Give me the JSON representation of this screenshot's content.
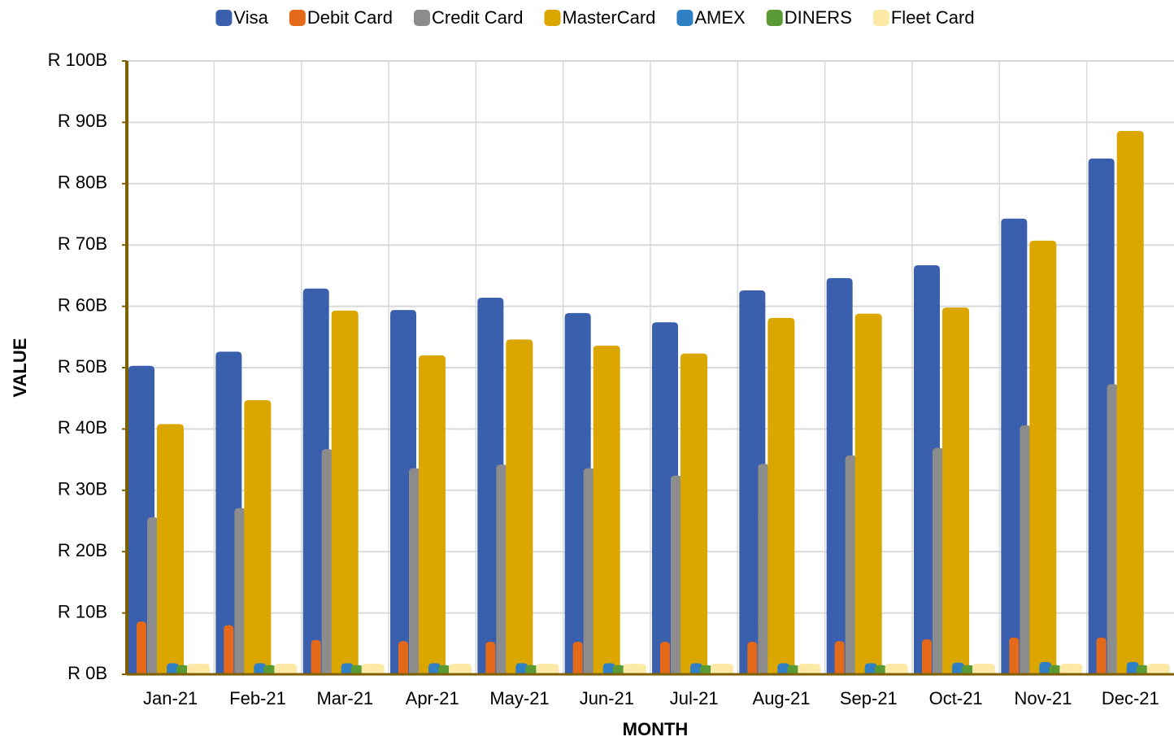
{
  "chart_data": {
    "type": "bar",
    "x_label": "MONTH",
    "y_label": "VALUE",
    "categories": [
      "Jan-21",
      "Feb-21",
      "Mar-21",
      "Apr-21",
      "May-21",
      "Jun-21",
      "Jul-21",
      "Aug-21",
      "Sep-21",
      "Oct-21",
      "Nov-21",
      "Dec-21"
    ],
    "series": [
      {
        "name": "Visa",
        "color": "#3a5fad",
        "values": [
          50300000000,
          52600000000,
          62900000000,
          59400000000,
          61400000000,
          58900000000,
          57400000000,
          62600000000,
          64600000000,
          66700000000,
          74300000000,
          84100000000
        ]
      },
      {
        "name": "Debit Card",
        "color": "#e46a1a",
        "values": [
          8600000000,
          8000000000,
          5600000000,
          5400000000,
          5300000000,
          5300000000,
          5300000000,
          5300000000,
          5400000000,
          5700000000,
          6000000000,
          6000000000
        ]
      },
      {
        "name": "Credit Card",
        "color": "#8c8c8c",
        "values": [
          25600000000,
          27100000000,
          36700000000,
          33600000000,
          34200000000,
          33600000000,
          32400000000,
          34300000000,
          35700000000,
          36900000000,
          40600000000,
          47300000000
        ]
      },
      {
        "name": "MasterCard",
        "color": "#dba600",
        "values": [
          40800000000,
          44700000000,
          59300000000,
          52000000000,
          54600000000,
          53600000000,
          52300000000,
          58100000000,
          58800000000,
          59800000000,
          70700000000,
          88600000000
        ]
      },
      {
        "name": "AMEX",
        "color": "#2f7fc4",
        "values": [
          1800000000,
          1800000000,
          1800000000,
          1800000000,
          1800000000,
          1800000000,
          1800000000,
          1800000000,
          1800000000,
          1900000000,
          2000000000,
          2000000000
        ]
      },
      {
        "name": "DINERS",
        "color": "#5a9a35",
        "values": [
          1500000000,
          1500000000,
          1500000000,
          1500000000,
          1500000000,
          1500000000,
          1500000000,
          1500000000,
          1500000000,
          1500000000,
          1500000000,
          1500000000
        ]
      },
      {
        "name": "Fleet Card",
        "color": "#fde9a6",
        "values": [
          1700000000,
          1700000000,
          1700000000,
          1700000000,
          1700000000,
          1700000000,
          1700000000,
          1700000000,
          1700000000,
          1700000000,
          1700000000,
          1700000000
        ]
      }
    ],
    "ylim": [
      0,
      100000000000
    ],
    "yticks": [
      {
        "value": 0,
        "label": "R 0B"
      },
      {
        "value": 10000000000,
        "label": "R 10B"
      },
      {
        "value": 20000000000,
        "label": "R 20B"
      },
      {
        "value": 30000000000,
        "label": "R 30B"
      },
      {
        "value": 40000000000,
        "label": "R 40B"
      },
      {
        "value": 50000000000,
        "label": "R 50B"
      },
      {
        "value": 60000000000,
        "label": "R 60B"
      },
      {
        "value": 70000000000,
        "label": "R 70B"
      },
      {
        "value": 80000000000,
        "label": "R 80B"
      },
      {
        "value": 90000000000,
        "label": "R 90B"
      },
      {
        "value": 100000000000,
        "label": "R 100B"
      }
    ],
    "grid": true,
    "legend": "top"
  }
}
